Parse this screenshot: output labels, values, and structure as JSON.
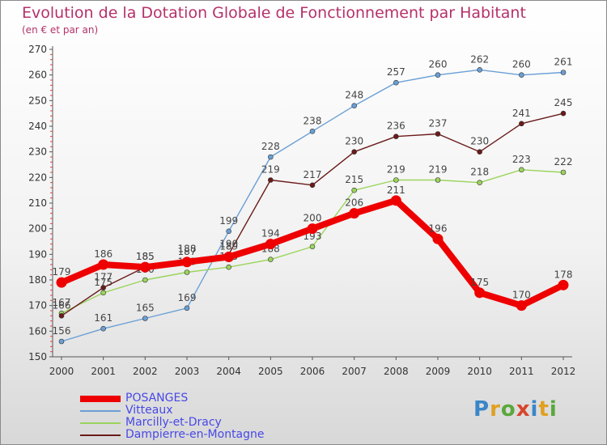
{
  "header": {
    "title": "Evolution de la Dotation Globale de Fonctionnement par Habitant",
    "subtitle": "(en € et par an)"
  },
  "logo": {
    "text": "Proxiti"
  },
  "colors": {
    "title": "#b5316a",
    "legend_text": "#4848e8",
    "POSANGES": "#ee0000",
    "Vitteaux": "#6a9fd5",
    "Marcilly-et-Dracy": "#9bd45c",
    "Dampierre-en-Montagne": "#6b1a1a"
  },
  "chart_data": {
    "type": "line",
    "title": "Evolution de la Dotation Globale de Fonctionnement par Habitant",
    "subtitle": "(en € et par an)",
    "categories": [
      "2000",
      "2001",
      "2002",
      "2003",
      "2004",
      "2005",
      "2006",
      "2007",
      "2008",
      "2009",
      "2010",
      "2011",
      "2012"
    ],
    "ylim": [
      150,
      270
    ],
    "yticks": [
      150,
      160,
      170,
      180,
      190,
      200,
      210,
      220,
      230,
      240,
      250,
      260,
      270
    ],
    "grid": false,
    "legend_position": "bottom-left",
    "series": [
      {
        "name": "Vitteaux",
        "color": "#6a9fd5",
        "values": [
          156,
          161,
          165,
          169,
          199,
          228,
          238,
          248,
          257,
          260,
          262,
          260,
          261
        ]
      },
      {
        "name": "Marcilly-et-Dracy",
        "color": "#9bd45c",
        "values": [
          167,
          175,
          180,
          183,
          185,
          188,
          193,
          215,
          219,
          219,
          218,
          223,
          222
        ]
      },
      {
        "name": "Dampierre-en-Montagne",
        "color": "#6b1a1a",
        "values": [
          166,
          177,
          185,
          188,
          190,
          219,
          217,
          230,
          236,
          237,
          230,
          241,
          245
        ]
      },
      {
        "name": "POSANGES",
        "color": "#ee0000",
        "values": [
          179,
          186,
          185,
          187,
          189,
          194,
          200,
          206,
          211,
          196,
          175,
          170,
          178
        ]
      }
    ]
  },
  "legend": [
    "POSANGES",
    "Vitteaux",
    "Marcilly-et-Dracy",
    "Dampierre-en-Montagne"
  ]
}
